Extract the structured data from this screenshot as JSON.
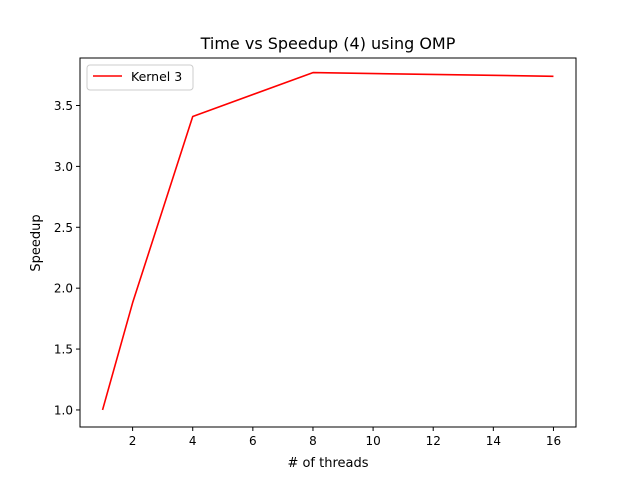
{
  "chart_data": {
    "type": "line",
    "title": "Time vs Speedup (4) using OMP",
    "xlabel": "# of threads",
    "ylabel": "Speedup",
    "xlim": [
      0.25,
      16.75
    ],
    "ylim": [
      0.86,
      3.89
    ],
    "xticks": [
      2,
      4,
      6,
      8,
      10,
      12,
      14,
      16
    ],
    "xtick_labels": [
      "2",
      "4",
      "6",
      "8",
      "10",
      "12",
      "14",
      "16"
    ],
    "yticks": [
      1.0,
      1.5,
      2.0,
      2.5,
      3.0,
      3.5
    ],
    "ytick_labels": [
      "1.0",
      "1.5",
      "2.0",
      "2.5",
      "3.0",
      "3.5"
    ],
    "grid": false,
    "legend_position": "top-left",
    "series": [
      {
        "name": "Kernel 3",
        "color": "#ff0000",
        "x": [
          1,
          2,
          4,
          8,
          16
        ],
        "y": [
          1.0,
          1.88,
          3.41,
          3.77,
          3.74
        ]
      }
    ]
  }
}
